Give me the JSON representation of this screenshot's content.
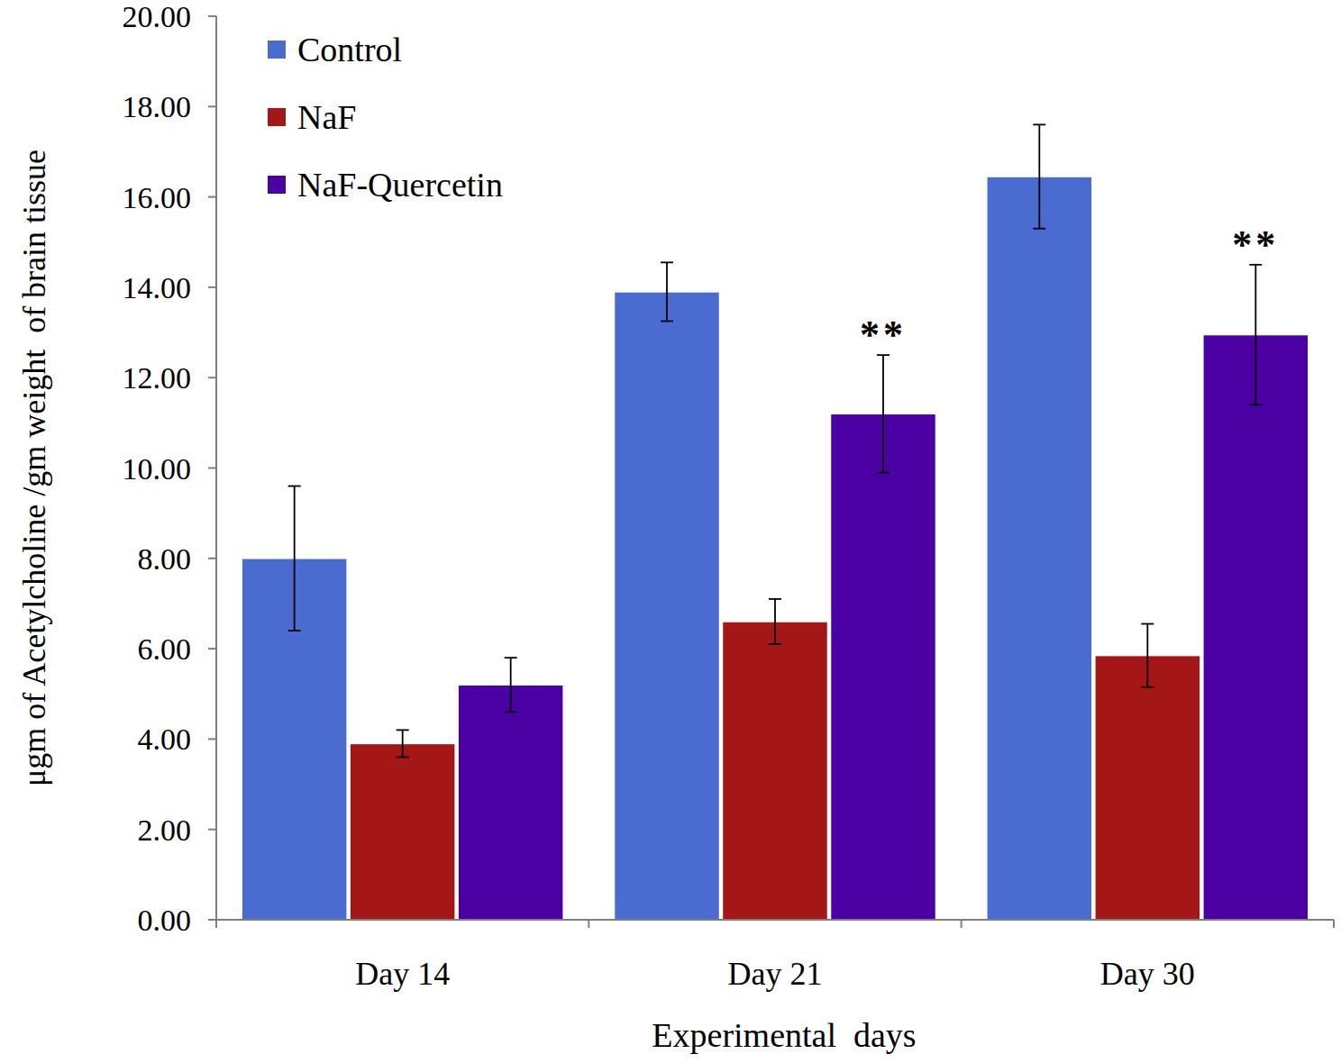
{
  "chart_data": {
    "type": "bar",
    "x_label": "Experimental  days",
    "y_label": "μgm of Acetylcholine /gm weight  of brain tissue",
    "categories": [
      "Day 14",
      "Day 21",
      "Day 30"
    ],
    "series": [
      {
        "name": "Control",
        "color": "#4a6bcf",
        "values": [
          8.0,
          13.9,
          16.45
        ],
        "errors": [
          1.6,
          0.65,
          1.15
        ]
      },
      {
        "name": "NaF",
        "color": "#a51717",
        "values": [
          3.9,
          6.6,
          5.85
        ],
        "errors": [
          0.3,
          0.5,
          0.7
        ]
      },
      {
        "name": "NaF-Quercetin",
        "color": "#4b00a3",
        "values": [
          5.2,
          11.2,
          12.95
        ],
        "errors": [
          0.6,
          1.3,
          1.55
        ]
      }
    ],
    "annotations": [
      {
        "text": "**",
        "category": "Day 21",
        "series": "NaF-Quercetin"
      },
      {
        "text": "**",
        "category": "Day 30",
        "series": "NaF-Quercetin"
      }
    ],
    "ylim": [
      0,
      20
    ],
    "yticks": [
      {
        "value": 0,
        "label": "0.00"
      },
      {
        "value": 2,
        "label": "2.00"
      },
      {
        "value": 4,
        "label": "4.00"
      },
      {
        "value": 6,
        "label": "6.00"
      },
      {
        "value": 8,
        "label": "8.00"
      },
      {
        "value": 10,
        "label": "10.00"
      },
      {
        "value": 12,
        "label": "12.00"
      },
      {
        "value": 14,
        "label": "14.00"
      },
      {
        "value": 16,
        "label": "16.00"
      },
      {
        "value": 18,
        "label": "18.00"
      },
      {
        "value": 20,
        "label": "20.00"
      }
    ],
    "grid": false,
    "legend": "top-left"
  }
}
